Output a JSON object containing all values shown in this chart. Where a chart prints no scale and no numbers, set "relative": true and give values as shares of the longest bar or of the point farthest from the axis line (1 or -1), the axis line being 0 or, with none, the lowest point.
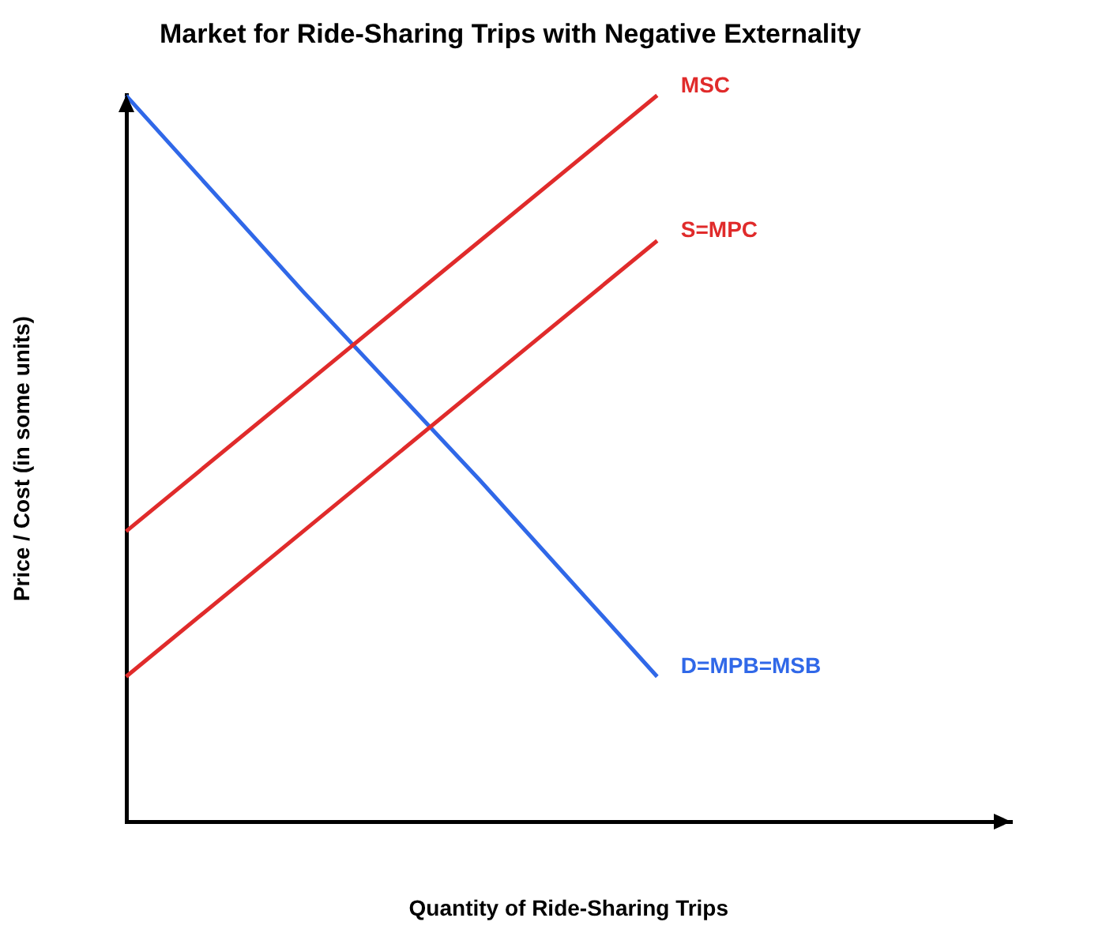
{
  "chart_data": {
    "type": "line",
    "title": "Market for Ride-Sharing Trips with Negative Externality",
    "xlabel": "Quantity of Ride-Sharing Trips",
    "ylabel": "Price / Cost (in some units)",
    "relative": true,
    "categories": [
      null,
      null,
      null,
      null,
      null,
      null
    ],
    "series": [
      {
        "name": "MSC",
        "color": "#e02b2b",
        "values": [
          0.4,
          0.6,
          0.8,
          1,
          null,
          null
        ]
      },
      {
        "name": "S=MPC",
        "color": "#e02b2b",
        "values": [
          0.2,
          0.4,
          0.6,
          0.8,
          null,
          null
        ]
      },
      {
        "name": "D=MPB=MSB",
        "color": "#3068e8",
        "values": [
          1,
          0.73,
          0.47,
          0.2,
          null,
          null
        ]
      }
    ],
    "legend": false,
    "marker": "none",
    "line_style": "solid",
    "grid": false
  }
}
